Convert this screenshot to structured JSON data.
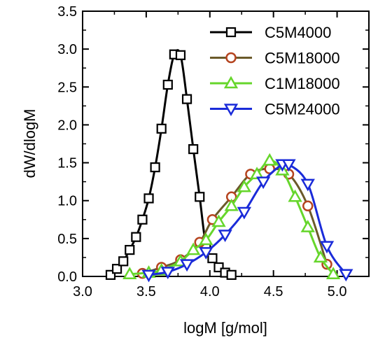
{
  "chart_data": {
    "type": "line",
    "xlabel": "logM [g/mol]",
    "ylabel": "dW/dlogM",
    "xlim": [
      3.0,
      5.25
    ],
    "ylim": [
      0.0,
      3.5
    ],
    "xticks": [
      3.0,
      3.5,
      4.0,
      4.5,
      5.0
    ],
    "yticks": [
      0.0,
      0.5,
      1.0,
      1.5,
      2.0,
      2.5,
      3.0,
      3.5
    ],
    "xtick_labels": [
      "3.0",
      "3.5",
      "4.0",
      "4.5",
      "5.0"
    ],
    "ytick_labels": [
      "0.0",
      "0.5",
      "1.0",
      "1.5",
      "2.0",
      "2.5",
      "3.0",
      "3.5"
    ],
    "grid": false,
    "legend_position": "top-right",
    "series": [
      {
        "name": "C5M4000",
        "color": "#000000",
        "line_color": "#000000",
        "marker": "square",
        "marker_fill": "#ffffff",
        "x": [
          3.22,
          3.27,
          3.32,
          3.37,
          3.42,
          3.47,
          3.52,
          3.57,
          3.62,
          3.67,
          3.72,
          3.77,
          3.82,
          3.87,
          3.92,
          3.97,
          4.02,
          4.07,
          4.12,
          4.17
        ],
        "y": [
          0.02,
          0.1,
          0.2,
          0.35,
          0.52,
          0.75,
          1.03,
          1.44,
          1.95,
          2.53,
          2.93,
          2.92,
          2.34,
          1.68,
          1.05,
          0.4,
          0.24,
          0.12,
          0.05,
          0.02
        ]
      },
      {
        "name": "C5M18000",
        "color": "#b5441f",
        "line_color": "#6b5a2a",
        "marker": "circle",
        "marker_fill": "#ffffff",
        "x": [
          3.47,
          3.62,
          3.77,
          3.92,
          4.02,
          4.17,
          4.32,
          4.47,
          4.62,
          4.77,
          4.92
        ],
        "y": [
          0.04,
          0.12,
          0.22,
          0.45,
          0.75,
          1.05,
          1.35,
          1.42,
          1.35,
          0.93,
          0.16
        ]
      },
      {
        "name": "C1M18000",
        "color": "#66d62b",
        "line_color": "#66d62b",
        "marker": "triangle-up",
        "marker_fill": "#ffffff",
        "x": [
          3.37,
          3.52,
          3.62,
          3.77,
          3.87,
          3.97,
          4.07,
          4.17,
          4.27,
          4.37,
          4.47,
          4.57,
          4.67,
          4.77,
          4.87,
          4.97
        ],
        "y": [
          0.03,
          0.05,
          0.08,
          0.2,
          0.35,
          0.48,
          0.72,
          0.93,
          1.18,
          1.35,
          1.53,
          1.4,
          1.05,
          0.65,
          0.25,
          0.03
        ]
      },
      {
        "name": "C5M24000",
        "color": "#1a2bd9",
        "line_color": "#1a2bd9",
        "marker": "triangle-down",
        "marker_fill": "#ffffff",
        "x": [
          3.52,
          3.67,
          3.82,
          3.97,
          4.12,
          4.27,
          4.42,
          4.57,
          4.62,
          4.77,
          4.92,
          5.07
        ],
        "y": [
          0.02,
          0.06,
          0.16,
          0.32,
          0.55,
          0.85,
          1.25,
          1.48,
          1.48,
          1.22,
          0.4,
          0.03
        ]
      }
    ]
  }
}
